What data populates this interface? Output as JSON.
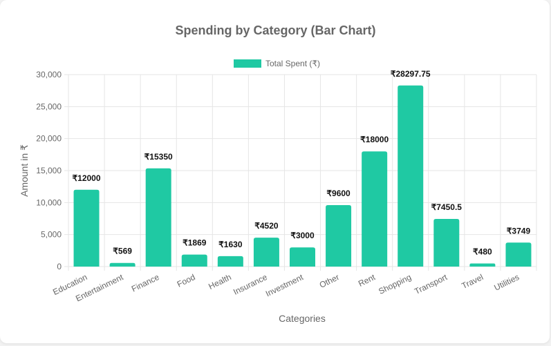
{
  "colors": {
    "bar": "#1fc9a3",
    "grid": "#e5e5e5",
    "text": "#666666",
    "value_label": "#111111"
  },
  "chart_data": {
    "type": "bar",
    "title": "Spending by Category (Bar Chart)",
    "xlabel": "Categories",
    "ylabel": "Amount in ₹",
    "legend": {
      "position": "top",
      "entries": [
        "Total Spent (₹)"
      ]
    },
    "grid": true,
    "ylim": [
      0,
      30000
    ],
    "yticks": [
      0,
      5000,
      10000,
      15000,
      20000,
      25000,
      30000
    ],
    "ytick_labels": [
      "0",
      "5,000",
      "10,000",
      "15,000",
      "20,000",
      "25,000",
      "30,000"
    ],
    "categories": [
      "Education",
      "Entertainment",
      "Finance",
      "Food",
      "Health",
      "Insurance",
      "Investment",
      "Other",
      "Rent",
      "Shopping",
      "Transport",
      "Travel",
      "Utilities"
    ],
    "series": [
      {
        "name": "Total Spent (₹)",
        "values": [
          12000,
          569,
          15350,
          1869,
          1630,
          4520,
          3000,
          9600,
          18000,
          28297.75,
          7450.5,
          480,
          3749
        ],
        "value_labels": [
          "₹12000",
          "₹569",
          "₹15350",
          "₹1869",
          "₹1630",
          "₹4520",
          "₹3000",
          "₹9600",
          "₹18000",
          "₹28297.75",
          "₹7450.5",
          "₹480",
          "₹3749"
        ]
      }
    ]
  }
}
